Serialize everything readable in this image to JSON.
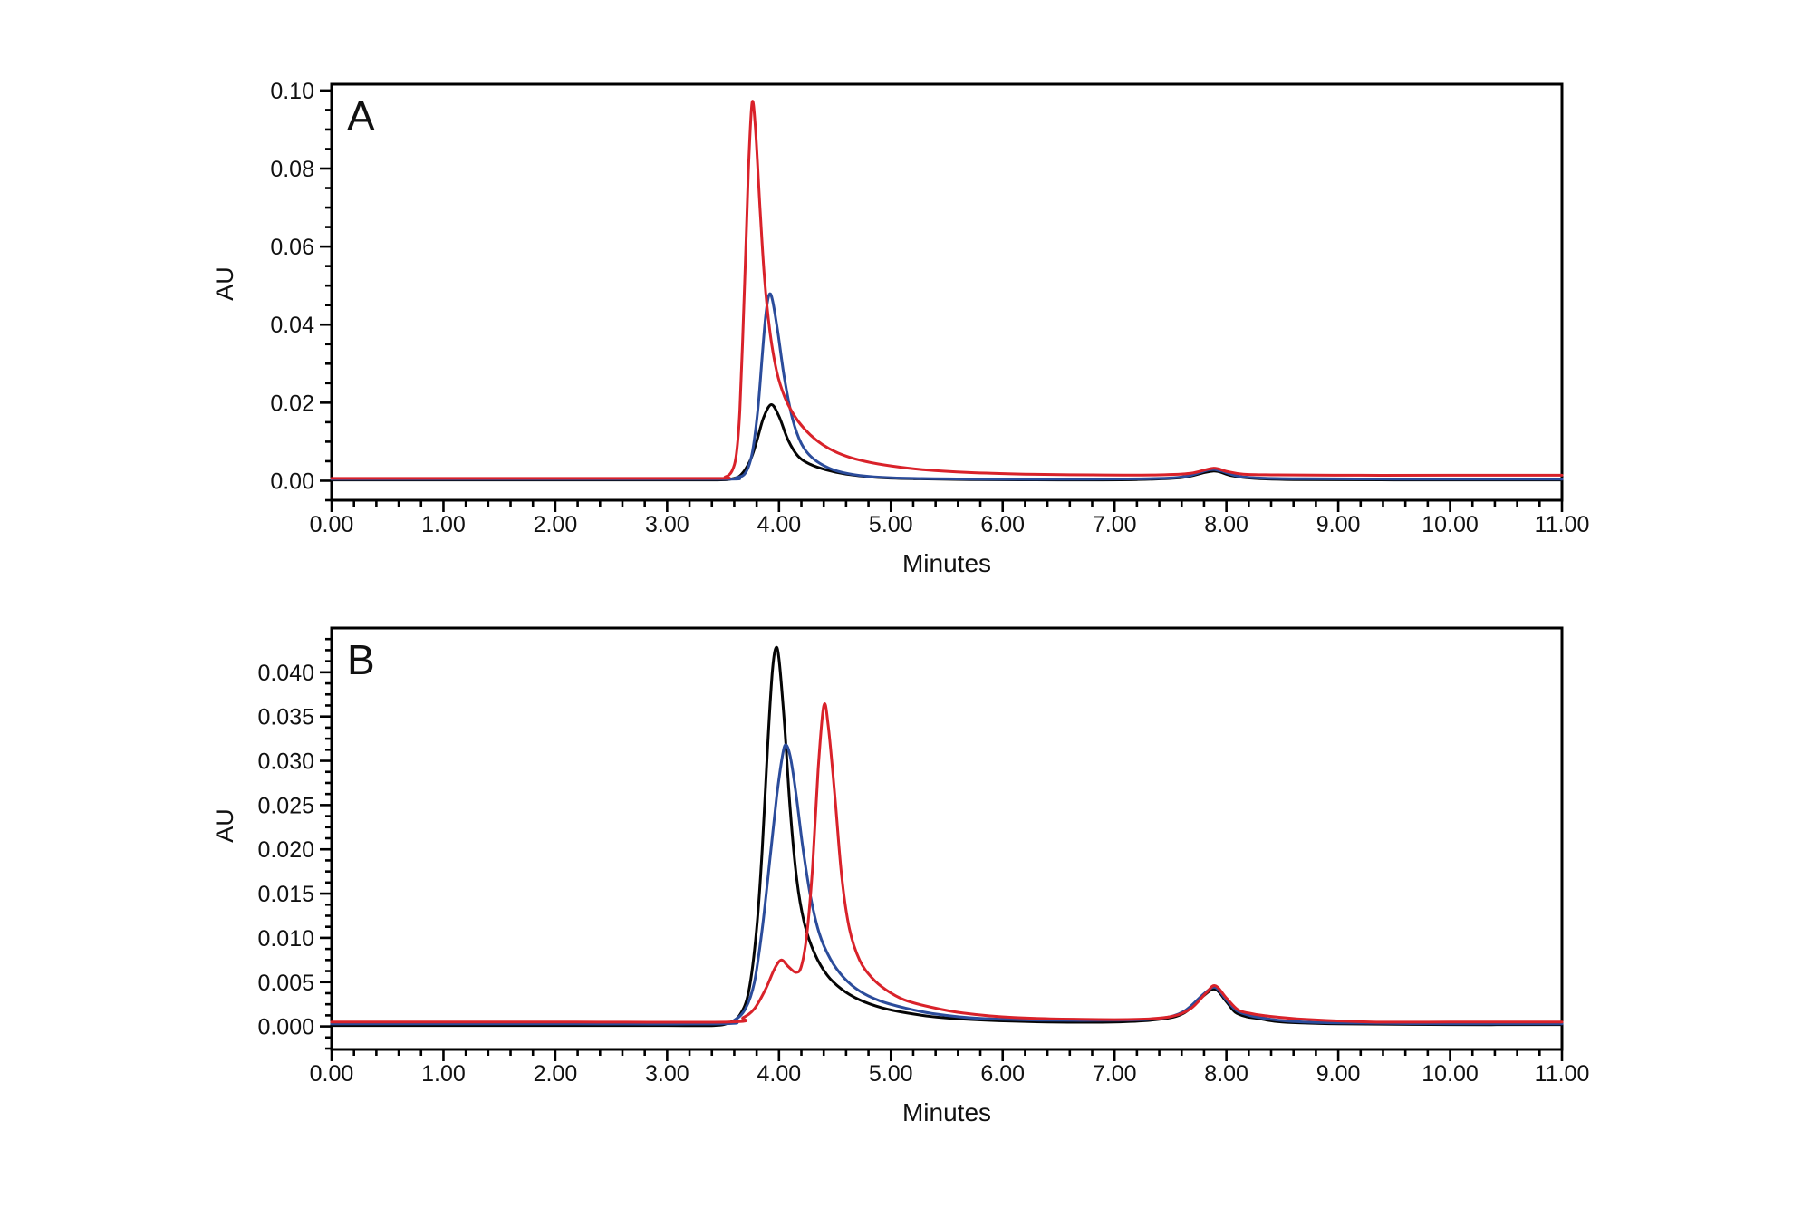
{
  "figure": {
    "background": "#ffffff",
    "text_color": "#111111",
    "axis_color": "#000000"
  },
  "chart_data": [
    {
      "id": "panel-a",
      "type": "line",
      "panel_label": "A",
      "xlabel": "Minutes",
      "ylabel": "AU",
      "xlim": [
        0,
        11
      ],
      "ylim": [
        -0.005,
        0.1016
      ],
      "x_ticks": {
        "major_values": [
          0,
          1,
          2,
          3,
          4,
          5,
          6,
          7,
          8,
          9,
          10,
          11
        ],
        "major_labels": [
          "0.00",
          "1.00",
          "2.00",
          "3.00",
          "4.00",
          "5.00",
          "6.00",
          "7.00",
          "8.00",
          "9.00",
          "10.00",
          "11.00"
        ],
        "minor_step": 0.2
      },
      "y_ticks": {
        "major_values": [
          0,
          0.02,
          0.04,
          0.06,
          0.08,
          0.1
        ],
        "major_labels": [
          "0.00",
          "0.02",
          "0.04",
          "0.06",
          "0.08",
          "0.10"
        ],
        "minor_step": 0.005
      },
      "series": [
        {
          "name": "black-trace",
          "color": "#050505",
          "points": [
            [
              0,
              0.0002
            ],
            [
              1,
              0.0002
            ],
            [
              2,
              0.0002
            ],
            [
              3,
              0.0002
            ],
            [
              3.45,
              0.0002
            ],
            [
              3.58,
              0.0005
            ],
            [
              3.66,
              0.0015
            ],
            [
              3.74,
              0.005
            ],
            [
              3.8,
              0.01
            ],
            [
              3.86,
              0.016
            ],
            [
              3.93,
              0.0195
            ],
            [
              4.0,
              0.0165
            ],
            [
              4.08,
              0.0105
            ],
            [
              4.17,
              0.0063
            ],
            [
              4.28,
              0.0042
            ],
            [
              4.42,
              0.0028
            ],
            [
              4.6,
              0.0017
            ],
            [
              4.85,
              0.0009
            ],
            [
              5.2,
              0.0005
            ],
            [
              5.7,
              0.0003
            ],
            [
              6.5,
              0.0002
            ],
            [
              7.2,
              0.0003
            ],
            [
              7.6,
              0.0008
            ],
            [
              7.82,
              0.0022
            ],
            [
              7.92,
              0.0024
            ],
            [
              8.05,
              0.0013
            ],
            [
              8.25,
              0.0006
            ],
            [
              8.6,
              0.0003
            ],
            [
              9.5,
              0.0002
            ],
            [
              11,
              0.0002
            ]
          ]
        },
        {
          "name": "blue-trace",
          "color": "#2b4c9b",
          "points": [
            [
              0,
              0.0004
            ],
            [
              2,
              0.0004
            ],
            [
              3.5,
              0.0004
            ],
            [
              3.62,
              0.0008
            ],
            [
              3.7,
              0.002
            ],
            [
              3.76,
              0.007
            ],
            [
              3.81,
              0.018
            ],
            [
              3.85,
              0.032
            ],
            [
              3.88,
              0.042
            ],
            [
              3.91,
              0.0475
            ],
            [
              3.94,
              0.0465
            ],
            [
              3.99,
              0.038
            ],
            [
              4.05,
              0.026
            ],
            [
              4.12,
              0.016
            ],
            [
              4.2,
              0.0095
            ],
            [
              4.3,
              0.0058
            ],
            [
              4.45,
              0.0032
            ],
            [
              4.62,
              0.0018
            ],
            [
              4.85,
              0.001
            ],
            [
              5.2,
              0.0006
            ],
            [
              5.8,
              0.0004
            ],
            [
              6.8,
              0.0004
            ],
            [
              7.4,
              0.0006
            ],
            [
              7.65,
              0.0012
            ],
            [
              7.85,
              0.0028
            ],
            [
              7.95,
              0.0025
            ],
            [
              8.1,
              0.0012
            ],
            [
              8.3,
              0.0007
            ],
            [
              8.7,
              0.0005
            ],
            [
              9.5,
              0.0004
            ],
            [
              11,
              0.0004
            ]
          ]
        },
        {
          "name": "red-trace",
          "color": "#d9222a",
          "points": [
            [
              0,
              0.0006
            ],
            [
              2,
              0.0006
            ],
            [
              3.42,
              0.0006
            ],
            [
              3.52,
              0.001
            ],
            [
              3.58,
              0.0025
            ],
            [
              3.62,
              0.007
            ],
            [
              3.65,
              0.018
            ],
            [
              3.68,
              0.04
            ],
            [
              3.71,
              0.065
            ],
            [
              3.73,
              0.082
            ],
            [
              3.76,
              0.097
            ],
            [
              3.79,
              0.09
            ],
            [
              3.83,
              0.07
            ],
            [
              3.87,
              0.052
            ],
            [
              3.92,
              0.038
            ],
            [
              3.98,
              0.028
            ],
            [
              4.05,
              0.0215
            ],
            [
              4.13,
              0.017
            ],
            [
              4.22,
              0.0135
            ],
            [
              4.33,
              0.0105
            ],
            [
              4.45,
              0.0082
            ],
            [
              4.6,
              0.0063
            ],
            [
              4.78,
              0.0049
            ],
            [
              5.0,
              0.0038
            ],
            [
              5.3,
              0.0028
            ],
            [
              5.7,
              0.0021
            ],
            [
              6.2,
              0.0017
            ],
            [
              6.8,
              0.0015
            ],
            [
              7.4,
              0.0015
            ],
            [
              7.68,
              0.0019
            ],
            [
              7.88,
              0.0032
            ],
            [
              8.0,
              0.0024
            ],
            [
              8.15,
              0.0017
            ],
            [
              8.45,
              0.0015
            ],
            [
              9.2,
              0.0014
            ],
            [
              10,
              0.0014
            ],
            [
              11,
              0.0014
            ]
          ]
        }
      ]
    },
    {
      "id": "panel-b",
      "type": "line",
      "panel_label": "B",
      "xlabel": "Minutes",
      "ylabel": "AU",
      "xlim": [
        0,
        11
      ],
      "ylim": [
        -0.0026,
        0.045
      ],
      "x_ticks": {
        "major_values": [
          0,
          1,
          2,
          3,
          4,
          5,
          6,
          7,
          8,
          9,
          10,
          11
        ],
        "major_labels": [
          "0.00",
          "1.00",
          "2.00",
          "3.00",
          "4.00",
          "5.00",
          "6.00",
          "7.00",
          "8.00",
          "9.00",
          "10.00",
          "11.00"
        ],
        "minor_step": 0.2
      },
      "y_ticks": {
        "major_values": [
          0,
          0.005,
          0.01,
          0.015,
          0.02,
          0.025,
          0.03,
          0.035,
          0.04
        ],
        "major_labels": [
          "0.000",
          "0.005",
          "0.010",
          "0.015",
          "0.020",
          "0.025",
          "0.030",
          "0.035",
          "0.040"
        ],
        "minor_step": 0.00125
      },
      "series": [
        {
          "name": "black-trace",
          "color": "#050505",
          "points": [
            [
              0,
              0.0001
            ],
            [
              1,
              0.0001
            ],
            [
              2,
              0.0001
            ],
            [
              3,
              0.0001
            ],
            [
              3.42,
              0.0001
            ],
            [
              3.55,
              0.0004
            ],
            [
              3.65,
              0.0013
            ],
            [
              3.73,
              0.004
            ],
            [
              3.8,
              0.011
            ],
            [
              3.85,
              0.02
            ],
            [
              3.9,
              0.032
            ],
            [
              3.94,
              0.04
            ],
            [
              3.97,
              0.0427
            ],
            [
              4.0,
              0.0415
            ],
            [
              4.05,
              0.034
            ],
            [
              4.1,
              0.0245
            ],
            [
              4.16,
              0.0165
            ],
            [
              4.23,
              0.0115
            ],
            [
              4.32,
              0.0082
            ],
            [
              4.43,
              0.0058
            ],
            [
              4.56,
              0.0042
            ],
            [
              4.72,
              0.003
            ],
            [
              4.92,
              0.0021
            ],
            [
              5.15,
              0.0015
            ],
            [
              5.45,
              0.001
            ],
            [
              5.85,
              0.0007
            ],
            [
              6.4,
              0.0005
            ],
            [
              7.0,
              0.0005
            ],
            [
              7.4,
              0.0008
            ],
            [
              7.62,
              0.0015
            ],
            [
              7.8,
              0.0035
            ],
            [
              7.9,
              0.0042
            ],
            [
              8.0,
              0.0028
            ],
            [
              8.08,
              0.0016
            ],
            [
              8.18,
              0.0011
            ],
            [
              8.28,
              0.0009
            ],
            [
              8.5,
              0.0005
            ],
            [
              9,
              0.0003
            ],
            [
              10,
              0.0002
            ],
            [
              11,
              0.0002
            ]
          ]
        },
        {
          "name": "blue-trace",
          "color": "#2b4c9b",
          "points": [
            [
              0,
              0.0003
            ],
            [
              2,
              0.0003
            ],
            [
              3.48,
              0.0003
            ],
            [
              3.6,
              0.0007
            ],
            [
              3.7,
              0.002
            ],
            [
              3.78,
              0.005
            ],
            [
              3.85,
              0.011
            ],
            [
              3.92,
              0.019
            ],
            [
              3.98,
              0.026
            ],
            [
              4.03,
              0.0305
            ],
            [
              4.06,
              0.0318
            ],
            [
              4.1,
              0.0305
            ],
            [
              4.15,
              0.0265
            ],
            [
              4.21,
              0.0205
            ],
            [
              4.28,
              0.0148
            ],
            [
              4.36,
              0.0105
            ],
            [
              4.46,
              0.0076
            ],
            [
              4.58,
              0.0055
            ],
            [
              4.72,
              0.004
            ],
            [
              4.9,
              0.0029
            ],
            [
              5.12,
              0.0021
            ],
            [
              5.4,
              0.0014
            ],
            [
              5.8,
              0.0009
            ],
            [
              6.4,
              0.0007
            ],
            [
              7.0,
              0.0007
            ],
            [
              7.4,
              0.0009
            ],
            [
              7.62,
              0.0017
            ],
            [
              7.8,
              0.0037
            ],
            [
              7.9,
              0.0044
            ],
            [
              8.0,
              0.003
            ],
            [
              8.09,
              0.0018
            ],
            [
              8.19,
              0.0013
            ],
            [
              8.3,
              0.001
            ],
            [
              8.55,
              0.0006
            ],
            [
              9,
              0.0004
            ],
            [
              10,
              0.0003
            ],
            [
              11,
              0.0003
            ]
          ]
        },
        {
          "name": "red-trace",
          "color": "#d9222a",
          "points": [
            [
              0,
              0.0005
            ],
            [
              2,
              0.0005
            ],
            [
              3.55,
              0.0005
            ],
            [
              3.68,
              0.001
            ],
            [
              3.78,
              0.002
            ],
            [
              3.88,
              0.0042
            ],
            [
              3.96,
              0.0065
            ],
            [
              4.02,
              0.0075
            ],
            [
              4.08,
              0.0068
            ],
            [
              4.15,
              0.0061
            ],
            [
              4.2,
              0.0068
            ],
            [
              4.25,
              0.0105
            ],
            [
              4.3,
              0.018
            ],
            [
              4.35,
              0.029
            ],
            [
              4.4,
              0.0362
            ],
            [
              4.44,
              0.034
            ],
            [
              4.5,
              0.026
            ],
            [
              4.56,
              0.017
            ],
            [
              4.63,
              0.011
            ],
            [
              4.72,
              0.0075
            ],
            [
              4.83,
              0.0055
            ],
            [
              4.96,
              0.0041
            ],
            [
              5.12,
              0.003
            ],
            [
              5.35,
              0.0022
            ],
            [
              5.65,
              0.0015
            ],
            [
              6.1,
              0.001
            ],
            [
              6.7,
              0.0008
            ],
            [
              7.2,
              0.0008
            ],
            [
              7.5,
              0.0011
            ],
            [
              7.68,
              0.002
            ],
            [
              7.82,
              0.0038
            ],
            [
              7.9,
              0.0046
            ],
            [
              8.0,
              0.0032
            ],
            [
              8.1,
              0.0019
            ],
            [
              8.2,
              0.0015
            ],
            [
              8.35,
              0.0012
            ],
            [
              8.7,
              0.0008
            ],
            [
              9.3,
              0.0005
            ],
            [
              10,
              0.0005
            ],
            [
              11,
              0.0005
            ]
          ]
        }
      ]
    }
  ]
}
